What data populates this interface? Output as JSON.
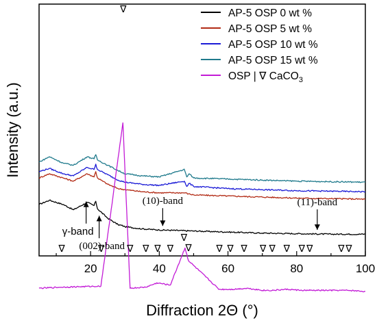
{
  "chart_data": {
    "type": "line",
    "xlabel": "Diffraction 2Θ (°)",
    "ylabel": "Intensity (a.u.)",
    "xlim": [
      5,
      100
    ],
    "xticks": [
      20,
      40,
      60,
      80,
      100
    ],
    "y_scale": "arbitrary units, stacked offsets, no tick labels",
    "legend_position": "top-right",
    "series": [
      {
        "name": "AP-5 OSP 0 wt %",
        "color": "#000000",
        "points": [
          [
            5,
            33
          ],
          [
            8,
            37
          ],
          [
            12,
            33
          ],
          [
            15,
            28
          ],
          [
            19,
            35
          ],
          [
            21,
            32
          ],
          [
            21.5,
            36
          ],
          [
            22,
            29
          ],
          [
            25,
            20
          ],
          [
            28,
            14
          ],
          [
            29.3,
            13
          ],
          [
            30,
            12
          ],
          [
            35,
            10
          ],
          [
            40,
            9
          ],
          [
            50,
            8
          ],
          [
            60,
            7
          ],
          [
            70,
            6
          ],
          [
            80,
            5.5
          ],
          [
            90,
            5
          ],
          [
            100,
            5
          ]
        ]
      },
      {
        "name": "AP-5 OSP 5 wt %",
        "color": "#b22a14",
        "points": [
          [
            5,
            58
          ],
          [
            8,
            62
          ],
          [
            12,
            58
          ],
          [
            15,
            55
          ],
          [
            19,
            62
          ],
          [
            21,
            59
          ],
          [
            21.5,
            64
          ],
          [
            22,
            58
          ],
          [
            25,
            52
          ],
          [
            28,
            48
          ],
          [
            30,
            47
          ],
          [
            35,
            45
          ],
          [
            40,
            44
          ],
          [
            47.5,
            44
          ],
          [
            48.5,
            43
          ],
          [
            50,
            42
          ],
          [
            60,
            41
          ],
          [
            70,
            40
          ],
          [
            80,
            39
          ],
          [
            90,
            38.5
          ],
          [
            100,
            38
          ]
        ]
      },
      {
        "name": "AP-5 OSP 10 wt %",
        "color": "#1a1ad6",
        "points": [
          [
            5,
            64
          ],
          [
            8,
            67
          ],
          [
            12,
            62
          ],
          [
            15,
            60
          ],
          [
            19,
            68
          ],
          [
            21,
            66
          ],
          [
            21.5,
            71
          ],
          [
            22,
            66
          ],
          [
            25,
            61
          ],
          [
            28,
            56
          ],
          [
            30,
            54
          ],
          [
            35,
            52
          ],
          [
            40,
            51
          ],
          [
            47.3,
            55
          ],
          [
            48,
            50
          ],
          [
            48.7,
            53
          ],
          [
            50,
            50
          ],
          [
            60,
            48
          ],
          [
            70,
            47
          ],
          [
            80,
            46
          ],
          [
            90,
            45.5
          ],
          [
            100,
            45
          ]
        ]
      },
      {
        "name": "AP-5 OSP 15 wt %",
        "color": "#1f7a8c",
        "points": [
          [
            5,
            73
          ],
          [
            8,
            78
          ],
          [
            12,
            72
          ],
          [
            15,
            70
          ],
          [
            19,
            78
          ],
          [
            21,
            76
          ],
          [
            21.5,
            80
          ],
          [
            22,
            75
          ],
          [
            25,
            70
          ],
          [
            28,
            65
          ],
          [
            30,
            62
          ],
          [
            35,
            60
          ],
          [
            40,
            59
          ],
          [
            47.3,
            66
          ],
          [
            48,
            59
          ],
          [
            48.7,
            62
          ],
          [
            50,
            58
          ],
          [
            60,
            57
          ],
          [
            70,
            56
          ],
          [
            80,
            55
          ],
          [
            90,
            54.5
          ],
          [
            100,
            54
          ]
        ]
      },
      {
        "name": "OSP | ∇ CaCO3",
        "color": "#c21ad6",
        "points": [
          [
            5,
            -46
          ],
          [
            11.5,
            -45
          ],
          [
            23,
            -44
          ],
          [
            29.4,
            110
          ],
          [
            31.5,
            -46
          ],
          [
            36,
            -45
          ],
          [
            39.4,
            -41
          ],
          [
            43.2,
            -43
          ],
          [
            47.5,
            -8
          ],
          [
            48.5,
            -20
          ],
          [
            57.4,
            -47
          ],
          [
            61.4,
            -47
          ],
          [
            65.6,
            -46
          ],
          [
            70.3,
            -48
          ],
          [
            72.9,
            -48
          ],
          [
            77.2,
            -47
          ],
          [
            81.5,
            -48
          ],
          [
            83.8,
            -48
          ],
          [
            93,
            -48
          ],
          [
            95,
            -48
          ],
          [
            100,
            -49
          ]
        ]
      }
    ],
    "annotations": [
      {
        "text": "γ-band",
        "x": 18.7
      },
      {
        "text": "(002)-band",
        "x": 22.5
      },
      {
        "text": "(10)-band",
        "x": 41
      },
      {
        "text": "(11)-band",
        "x": 86
      }
    ],
    "calcite_markers": {
      "symbol": "∇",
      "positions": [
        11.6,
        23.1,
        29.5,
        31.5,
        36.1,
        39.5,
        43.2,
        47.2,
        48.5,
        57.5,
        60.7,
        64.7,
        70.2,
        72.9,
        77.1,
        81.5,
        83.8,
        93.0,
        95.2
      ]
    }
  }
}
